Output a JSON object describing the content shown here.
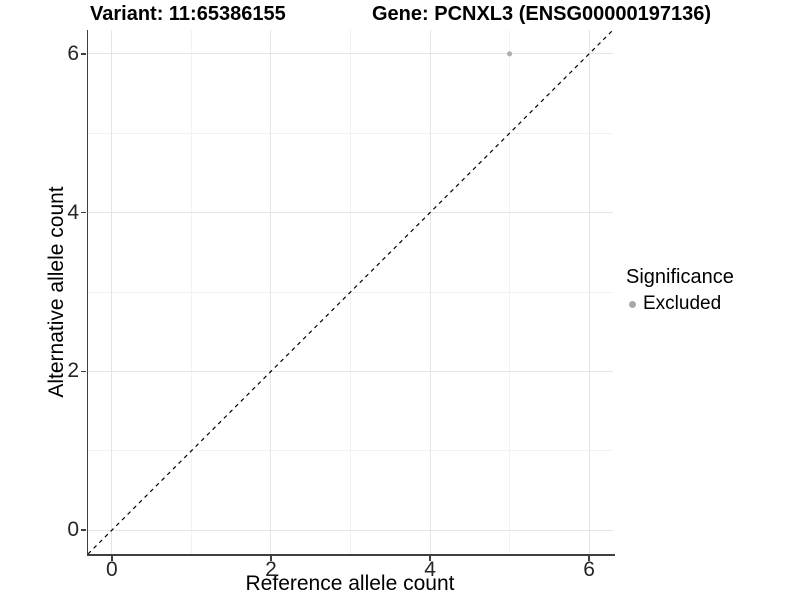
{
  "chart_data": {
    "type": "scatter",
    "title_left": "Variant: 11:65386155",
    "title_right": "Gene: PCNXL3 (ENSG00000197136)",
    "xlabel": "Reference allele count",
    "ylabel": "Alternative allele count",
    "xlim": [
      -0.3,
      6.3
    ],
    "ylim": [
      -0.3,
      6.3
    ],
    "x_ticks": [
      0,
      2,
      4,
      6
    ],
    "y_ticks": [
      0,
      2,
      4,
      6
    ],
    "x_minor_ticks": [
      1,
      3,
      5
    ],
    "y_minor_ticks": [
      1,
      3,
      5
    ],
    "grid": "major+minor",
    "points": [
      {
        "x": 5,
        "y": 6,
        "series": "Excluded"
      }
    ],
    "reference_line": {
      "equation": "y = x",
      "style": "dashed"
    },
    "legend": {
      "title": "Significance",
      "position": "right",
      "items": [
        {
          "label": "Excluded",
          "color": "#b0b0b0"
        }
      ]
    }
  },
  "colors": {
    "point": "#b0b0b0",
    "legend_marker": "#a8a8a8",
    "grid_major": "#e5e5e5",
    "grid_minor": "#f2f2f2",
    "axis_line": "#3f3f3f",
    "tick_label": "#262626",
    "reference_line": "#000000"
  }
}
